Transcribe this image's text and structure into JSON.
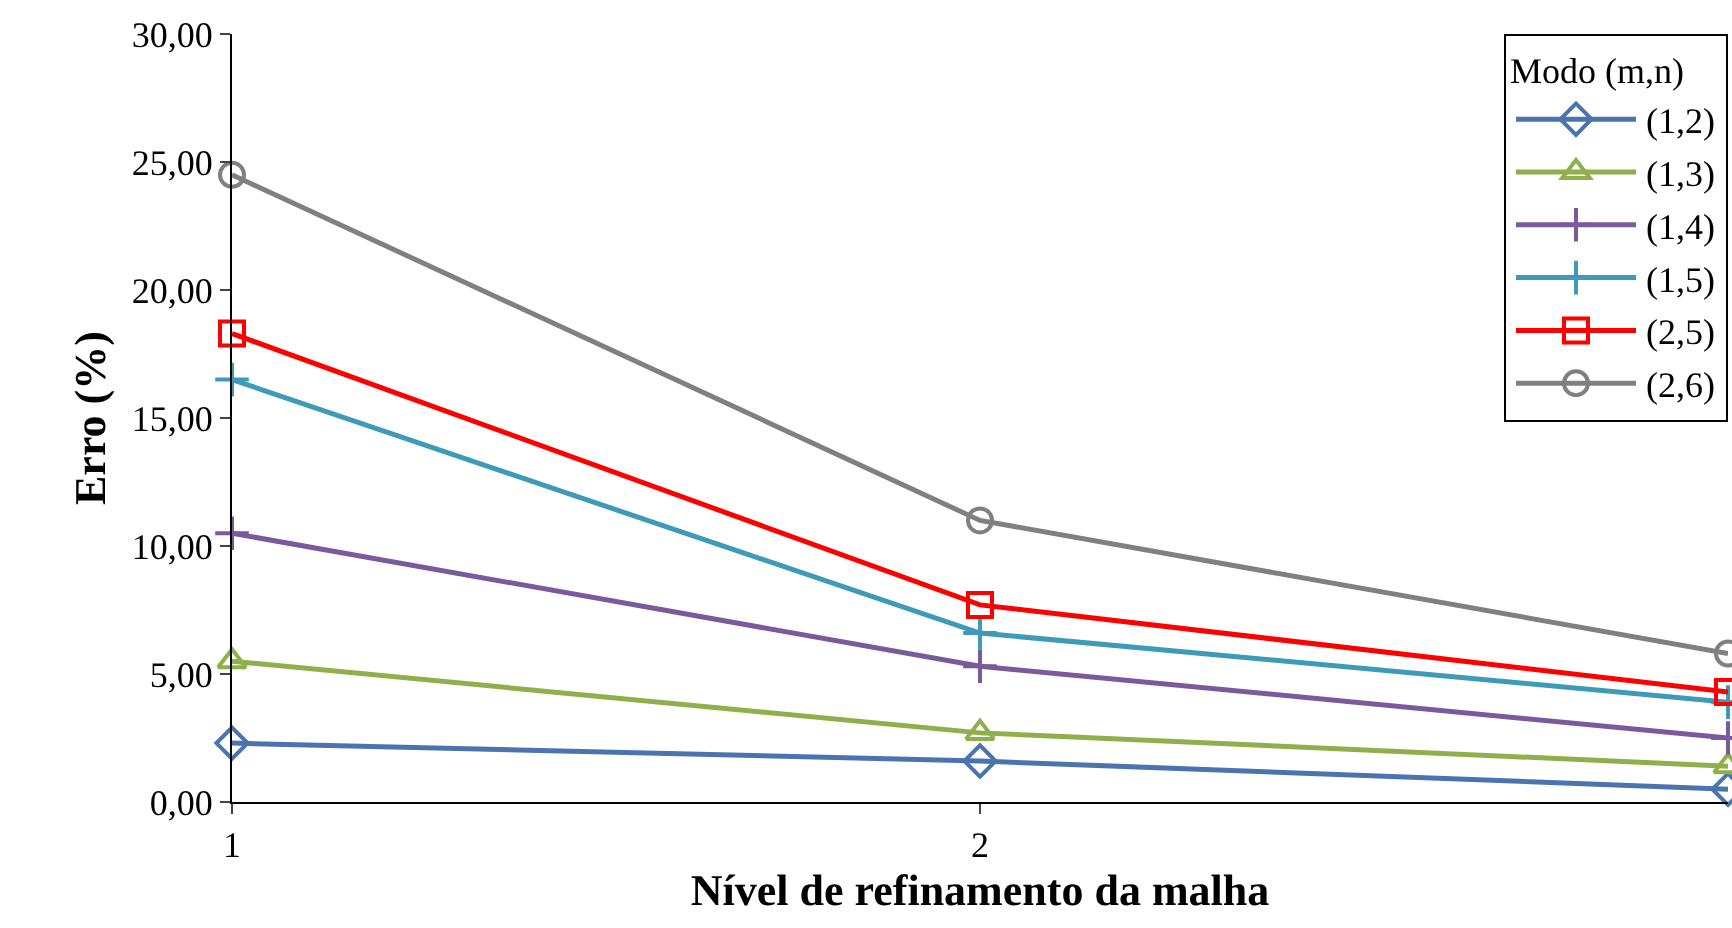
{
  "chart_data": {
    "type": "line",
    "xlabel": "Nível de refinamento da malha",
    "ylabel": "Erro (%)",
    "legend_title": "Modo (m,n)",
    "x": [
      1,
      2,
      3
    ],
    "xlim": [
      1,
      3
    ],
    "xticks": [
      1,
      2
    ],
    "ylim": [
      0,
      30
    ],
    "yticks": [
      {
        "value": 0,
        "label": "0,00"
      },
      {
        "value": 5,
        "label": "5,00"
      },
      {
        "value": 10,
        "label": "10,00"
      },
      {
        "value": 15,
        "label": "15,00"
      },
      {
        "value": 20,
        "label": "20,00"
      },
      {
        "value": 25,
        "label": "25,00"
      },
      {
        "value": 30,
        "label": "30,00"
      }
    ],
    "legend": "top right",
    "line_style": "solid",
    "series": [
      {
        "name": "(1,2)",
        "color": "#4a74b0",
        "marker": "diamond",
        "values": [
          2.3,
          1.6,
          0.5
        ]
      },
      {
        "name": "(1,3)",
        "color": "#8db04a",
        "marker": "triangle",
        "values": [
          5.5,
          2.7,
          1.4
        ]
      },
      {
        "name": "(1,4)",
        "color": "#7a5a9c",
        "marker": "cross",
        "values": [
          10.5,
          5.3,
          2.5
        ]
      },
      {
        "name": "(1,5)",
        "color": "#3d9ab8",
        "marker": "cross",
        "values": [
          16.5,
          6.6,
          3.9
        ]
      },
      {
        "name": "(2,5)",
        "color": "#ff0000",
        "marker": "square",
        "values": [
          18.3,
          7.7,
          4.3
        ]
      },
      {
        "name": "(2,6)",
        "color": "#808080",
        "marker": "circle",
        "values": [
          24.5,
          11.0,
          5.8
        ]
      }
    ]
  }
}
